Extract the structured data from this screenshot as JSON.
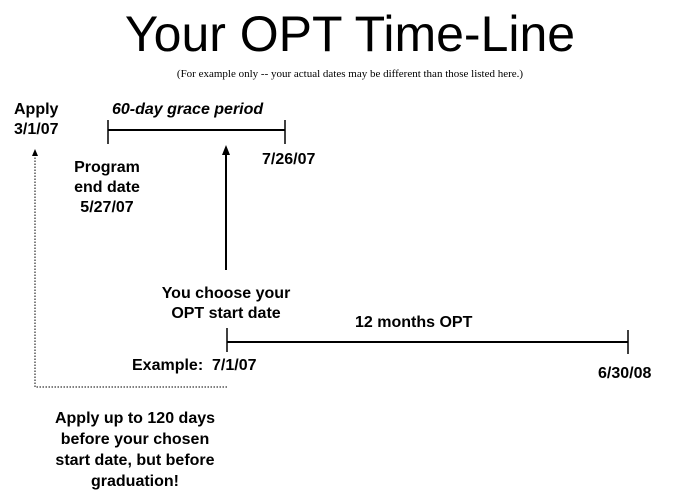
{
  "title": "Your OPT Time-Line",
  "subtitle": "(For example only -- your actual dates may be different than those listed here.)",
  "labels": {
    "apply": [
      "Apply",
      "3/1/07"
    ],
    "grace_period": "60-day grace period",
    "grace_end": "7/26/07",
    "program_end": [
      "Program",
      "end date",
      "5/27/07"
    ],
    "choose_start": [
      "You choose your",
      "OPT start date"
    ],
    "opt_duration": "12 months OPT",
    "example": "Example:  7/1/07",
    "opt_end": "6/30/08",
    "apply_note": [
      "Apply up to 120 days",
      "before your chosen",
      "start date, but before",
      "graduation!"
    ]
  }
}
